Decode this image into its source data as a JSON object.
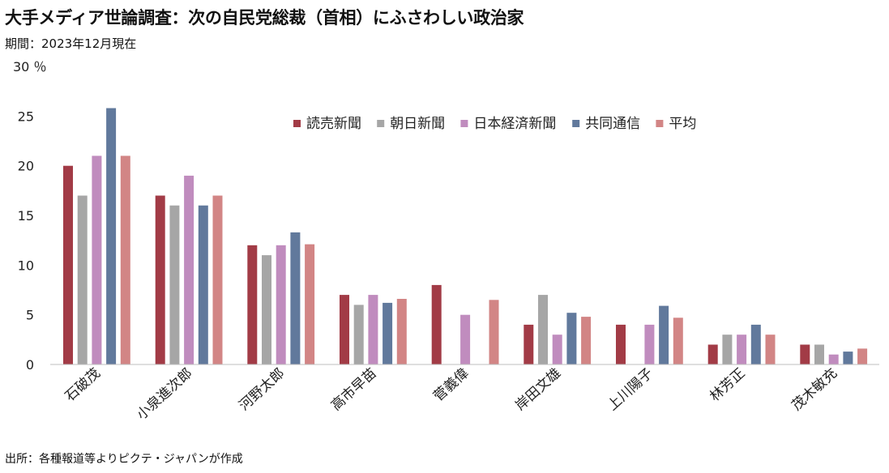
{
  "title": "大手メディア世論調査：次の自民党総裁（首相）にふさわしい政治家",
  "subtitle": "期間：2023年12月現在",
  "source": "出所：各種報道等よりピクテ・ジャパンが作成",
  "chart_data": {
    "type": "bar",
    "categories": [
      "石破茂",
      "小泉進次郎",
      "河野太郎",
      "高市早苗",
      "菅義偉",
      "岸田文雄",
      "上川陽子",
      "林芳正",
      "茂木敏充"
    ],
    "series": [
      {
        "name": "読売新聞",
        "color": "#A23B46",
        "values": [
          20,
          17,
          12,
          7,
          8,
          4,
          4,
          2,
          2
        ]
      },
      {
        "name": "朝日新聞",
        "color": "#A6A6A6",
        "values": [
          17,
          16,
          11,
          6,
          null,
          7,
          null,
          3,
          2
        ]
      },
      {
        "name": "日本経済新聞",
        "color": "#C08CBE",
        "values": [
          21,
          19,
          12,
          7,
          5,
          3,
          4,
          3,
          1
        ]
      },
      {
        "name": "共同通信",
        "color": "#61799C",
        "values": [
          25.8,
          16,
          13.3,
          6.2,
          null,
          5.2,
          5.9,
          4,
          1.3
        ]
      },
      {
        "name": "平均",
        "color": "#D28585",
        "values": [
          21,
          17,
          12.1,
          6.6,
          6.5,
          4.8,
          4.7,
          3,
          1.6
        ]
      }
    ],
    "ylim": [
      0,
      30
    ],
    "yticks": [
      0,
      5,
      10,
      15,
      20,
      25,
      30
    ],
    "y_top_label": "30 ％",
    "legend_position": "top-right",
    "grid": false
  }
}
